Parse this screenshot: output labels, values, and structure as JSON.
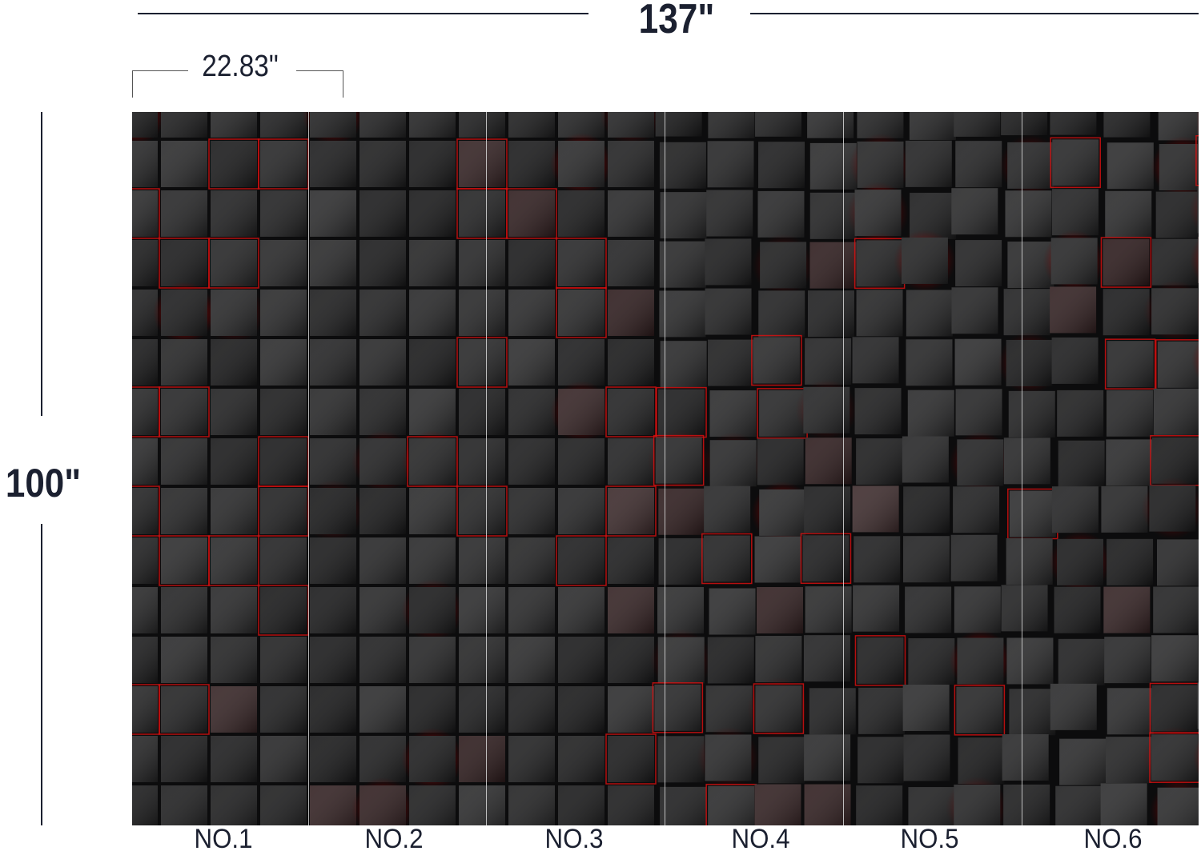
{
  "dimensions": {
    "total_width": "137\"",
    "panel_width": "22.83\"",
    "total_height": "100\""
  },
  "panels": [
    {
      "label": "NO.1"
    },
    {
      "label": "NO.2"
    },
    {
      "label": "NO.3"
    },
    {
      "label": "NO.4"
    },
    {
      "label": "NO.5"
    },
    {
      "label": "NO.6"
    }
  ],
  "colors": {
    "text": "#1b2030",
    "cube_dark": "#1e1e20",
    "glow_red": "#ff1010"
  },
  "image": {
    "subject": "black cubes with red glow wall mural"
  }
}
